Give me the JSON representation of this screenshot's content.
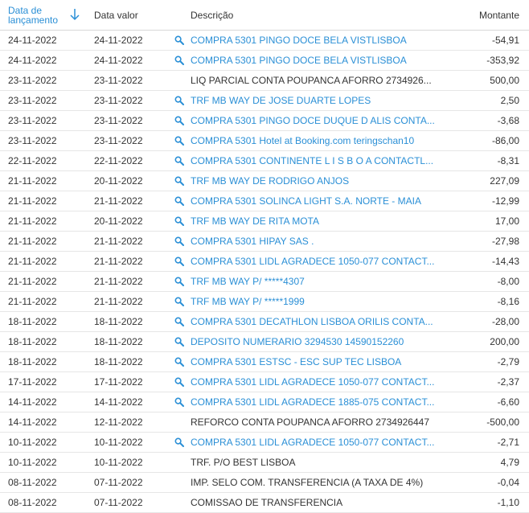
{
  "headers": {
    "data_lancamento": "Data de lançamento",
    "data_valor": "Data valor",
    "descricao": "Descrição",
    "montante": "Montante"
  },
  "colors": {
    "link": "#2a8fd6",
    "text": "#333333"
  },
  "rows": [
    {
      "lanc": "24-11-2022",
      "valor": "24-11-2022",
      "desc": "COMPRA 5301 PINGO DOCE BELA VISTLISBOA",
      "montante": "-54,91",
      "link": true
    },
    {
      "lanc": "24-11-2022",
      "valor": "24-11-2022",
      "desc": "COMPRA 5301 PINGO DOCE BELA VISTLISBOA",
      "montante": "-353,92",
      "link": true
    },
    {
      "lanc": "23-11-2022",
      "valor": "23-11-2022",
      "desc": "LIQ PARCIAL CONTA POUPANCA AFORRO 2734926...",
      "montante": "500,00",
      "link": false
    },
    {
      "lanc": "23-11-2022",
      "valor": "23-11-2022",
      "desc": "TRF MB WAY DE JOSE DUARTE LOPES",
      "montante": "2,50",
      "link": true
    },
    {
      "lanc": "23-11-2022",
      "valor": "23-11-2022",
      "desc": "COMPRA 5301 PINGO DOCE DUQUE D ALIS CONTA...",
      "montante": "-3,68",
      "link": true
    },
    {
      "lanc": "23-11-2022",
      "valor": "23-11-2022",
      "desc": "COMPRA 5301 Hotel at Booking.com teringschan10",
      "montante": "-86,00",
      "link": true
    },
    {
      "lanc": "22-11-2022",
      "valor": "22-11-2022",
      "desc": "COMPRA 5301 CONTINENTE L I S B O A CONTACTL...",
      "montante": "-8,31",
      "link": true
    },
    {
      "lanc": "21-11-2022",
      "valor": "20-11-2022",
      "desc": "TRF MB WAY DE RODRIGO ANJOS",
      "montante": "227,09",
      "link": true
    },
    {
      "lanc": "21-11-2022",
      "valor": "21-11-2022",
      "desc": "COMPRA 5301 SOLINCA LIGHT S.A. NORTE - MAIA",
      "montante": "-12,99",
      "link": true
    },
    {
      "lanc": "21-11-2022",
      "valor": "20-11-2022",
      "desc": "TRF MB WAY DE RITA MOTA",
      "montante": "17,00",
      "link": true
    },
    {
      "lanc": "21-11-2022",
      "valor": "21-11-2022",
      "desc": "COMPRA 5301 HIPAY SAS .",
      "montante": "-27,98",
      "link": true
    },
    {
      "lanc": "21-11-2022",
      "valor": "21-11-2022",
      "desc": "COMPRA 5301 LIDL AGRADECE 1050-077 CONTACT...",
      "montante": "-14,43",
      "link": true
    },
    {
      "lanc": "21-11-2022",
      "valor": "21-11-2022",
      "desc": "TRF MB WAY P/ *****4307",
      "montante": "-8,00",
      "link": true
    },
    {
      "lanc": "21-11-2022",
      "valor": "21-11-2022",
      "desc": "TRF MB WAY P/ *****1999",
      "montante": "-8,16",
      "link": true
    },
    {
      "lanc": "18-11-2022",
      "valor": "18-11-2022",
      "desc": "COMPRA 5301 DECATHLON LISBOA ORILIS CONTA...",
      "montante": "-28,00",
      "link": true
    },
    {
      "lanc": "18-11-2022",
      "valor": "18-11-2022",
      "desc": "DEPOSITO NUMERARIO 3294530 14590152260",
      "montante": "200,00",
      "link": true
    },
    {
      "lanc": "18-11-2022",
      "valor": "18-11-2022",
      "desc": "COMPRA 5301 ESTSC - ESC SUP TEC LISBOA",
      "montante": "-2,79",
      "link": true
    },
    {
      "lanc": "17-11-2022",
      "valor": "17-11-2022",
      "desc": "COMPRA 5301 LIDL AGRADECE 1050-077 CONTACT...",
      "montante": "-2,37",
      "link": true
    },
    {
      "lanc": "14-11-2022",
      "valor": "14-11-2022",
      "desc": "COMPRA 5301 LIDL AGRADECE 1885-075 CONTACT...",
      "montante": "-6,60",
      "link": true
    },
    {
      "lanc": "14-11-2022",
      "valor": "12-11-2022",
      "desc": "REFORCO CONTA POUPANCA AFORRO 2734926447",
      "montante": "-500,00",
      "link": false
    },
    {
      "lanc": "10-11-2022",
      "valor": "10-11-2022",
      "desc": "COMPRA 5301 LIDL AGRADECE 1050-077 CONTACT...",
      "montante": "-2,71",
      "link": true
    },
    {
      "lanc": "10-11-2022",
      "valor": "10-11-2022",
      "desc": "TRF. P/O BEST LISBOA",
      "montante": "4,79",
      "link": false
    },
    {
      "lanc": "08-11-2022",
      "valor": "07-11-2022",
      "desc": "IMP. SELO COM. TRANSFERENCIA (A TAXA DE 4%)",
      "montante": "-0,04",
      "link": false
    },
    {
      "lanc": "08-11-2022",
      "valor": "07-11-2022",
      "desc": "COMISSAO DE TRANSFERENCIA",
      "montante": "-1,10",
      "link": false
    }
  ]
}
